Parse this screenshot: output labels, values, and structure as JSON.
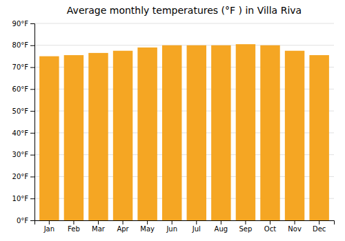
{
  "chart_data": {
    "type": "bar",
    "title": "Average monthly temperatures (°F ) in Villa Riva",
    "categories": [
      "Jan",
      "Feb",
      "Mar",
      "Apr",
      "May",
      "Jun",
      "Jul",
      "Aug",
      "Sep",
      "Oct",
      "Nov",
      "Dec"
    ],
    "values": [
      75,
      75.5,
      76.5,
      77.5,
      79,
      80,
      80,
      80,
      80.5,
      80,
      77.5,
      75.5
    ],
    "color": "#F5A623",
    "ylim": [
      0,
      90
    ],
    "yticks": [
      {
        "value": 0,
        "label": "0°F"
      },
      {
        "value": 10,
        "label": "10°F"
      },
      {
        "value": 20,
        "label": "20°F"
      },
      {
        "value": 30,
        "label": "30°F"
      },
      {
        "value": 40,
        "label": "40°F"
      },
      {
        "value": 50,
        "label": "50°F"
      },
      {
        "value": 60,
        "label": "60°F"
      },
      {
        "value": 70,
        "label": "70°F"
      },
      {
        "value": 80,
        "label": "80°F"
      },
      {
        "value": 90,
        "label": "90°F"
      }
    ],
    "grid": true
  }
}
